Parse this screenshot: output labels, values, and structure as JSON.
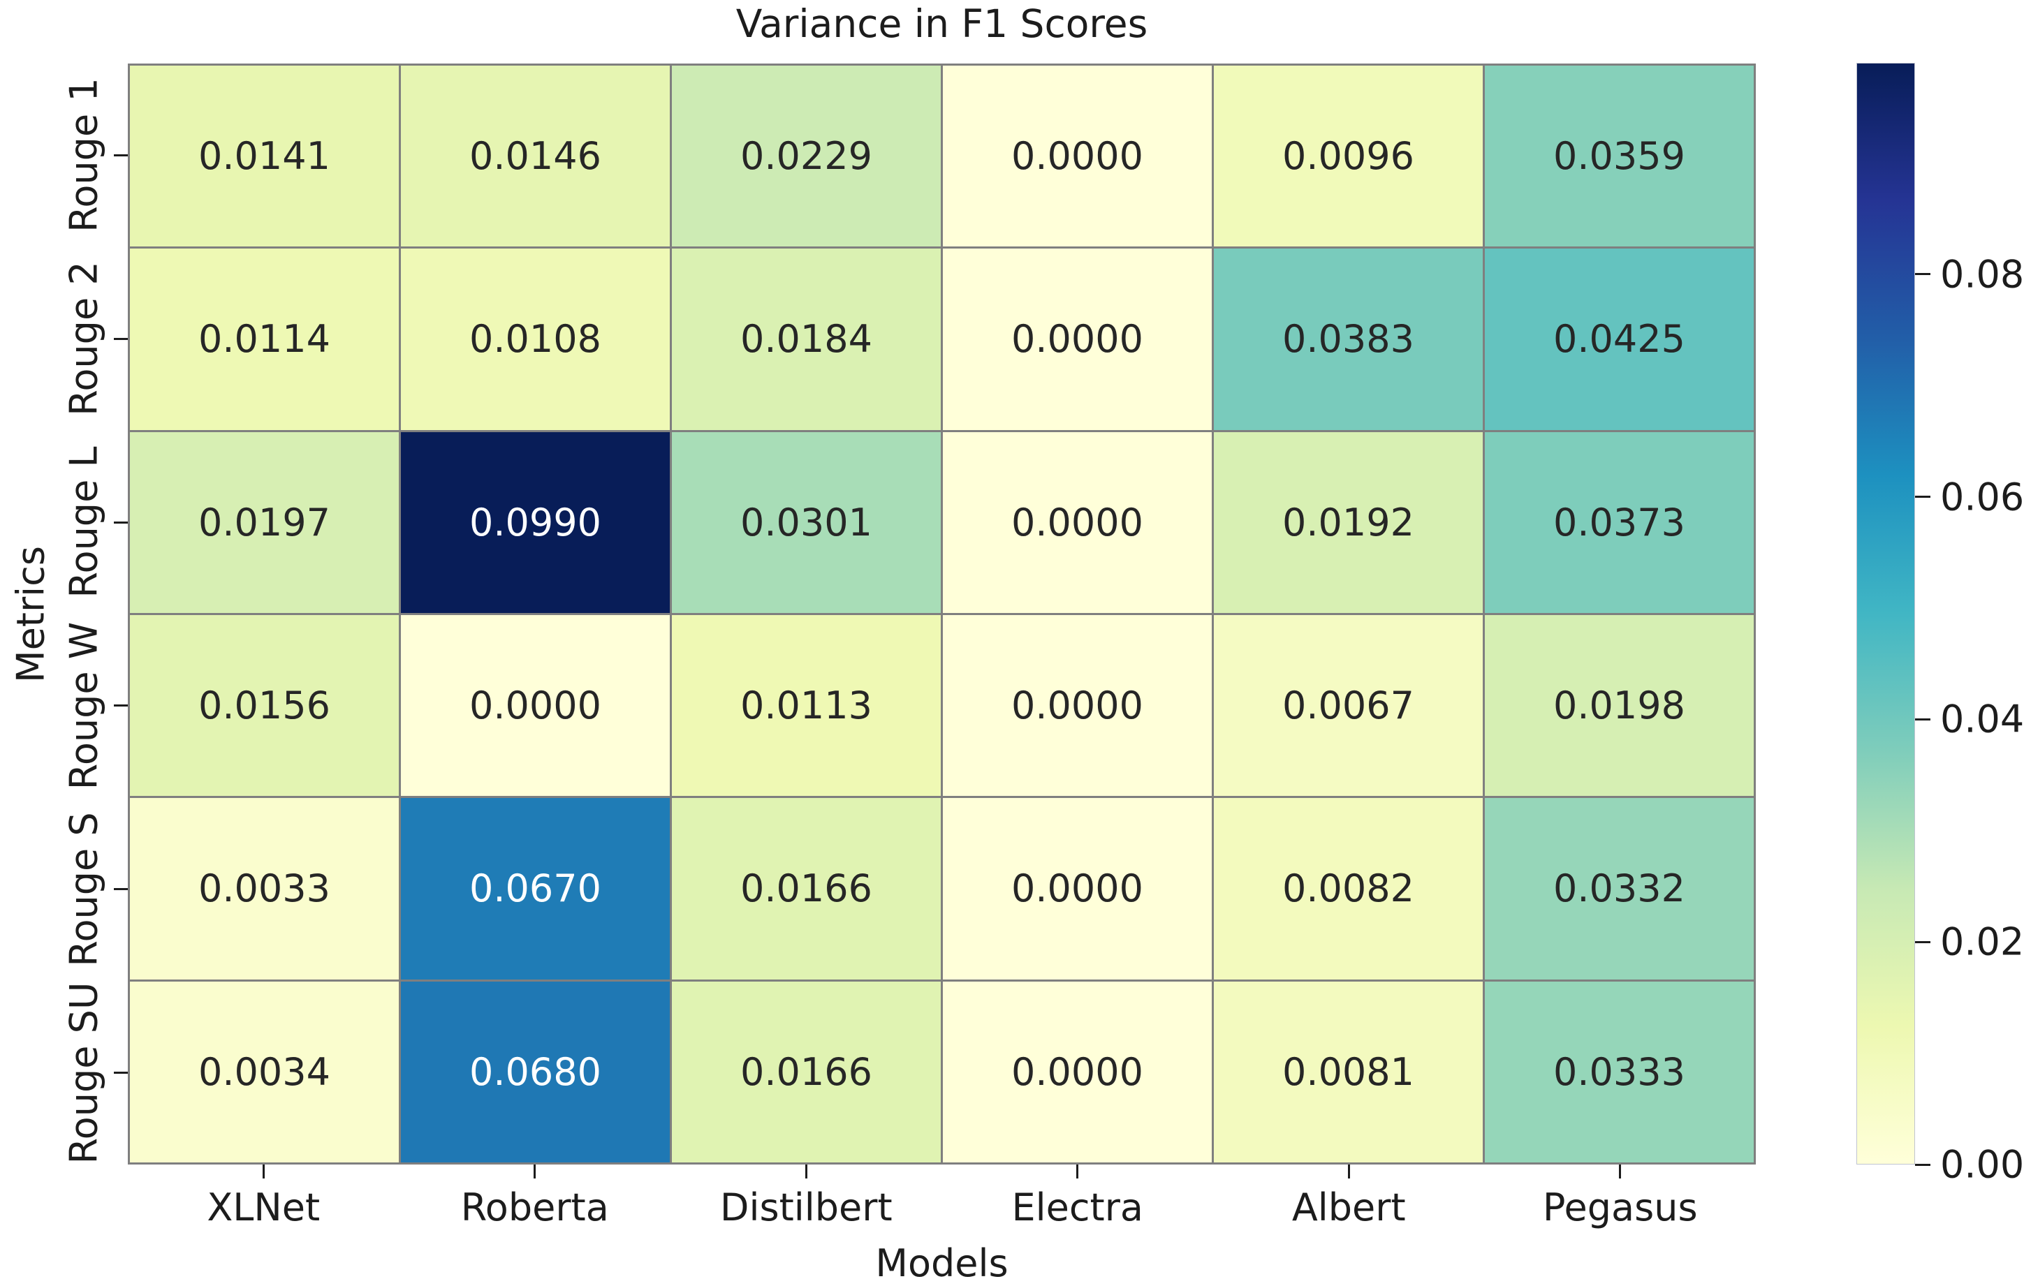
{
  "figure": {
    "background": "#ffffff",
    "text_color": "#1c1c1c",
    "gridline_color": "#7f7f7f",
    "annotation_dark_color": "#262626",
    "annotation_light_color": "#ffffff"
  },
  "chart_data": {
    "type": "heatmap",
    "title": "Variance in F1 Scores",
    "xlabel": "Models",
    "ylabel": "Metrics",
    "x_categories": [
      "XLNet",
      "Roberta",
      "Distilbert",
      "Electra",
      "Albert",
      "Pegasus"
    ],
    "y_categories": [
      "Rouge 1",
      "Rouge 2",
      "Rouge L",
      "Rouge W",
      "Rouge S",
      "Rouge SU"
    ],
    "values": [
      [
        0.0141,
        0.0146,
        0.0229,
        0.0,
        0.0096,
        0.0359
      ],
      [
        0.0114,
        0.0108,
        0.0184,
        0.0,
        0.0383,
        0.0425
      ],
      [
        0.0197,
        0.099,
        0.0301,
        0.0,
        0.0192,
        0.0373
      ],
      [
        0.0156,
        0.0,
        0.0113,
        0.0,
        0.0067,
        0.0198
      ],
      [
        0.0033,
        0.067,
        0.0166,
        0.0,
        0.0082,
        0.0332
      ],
      [
        0.0034,
        0.068,
        0.0166,
        0.0,
        0.0081,
        0.0333
      ]
    ],
    "annotations": [
      [
        "0.0141",
        "0.0146",
        "0.0229",
        "0.0000",
        "0.0096",
        "0.0359"
      ],
      [
        "0.0114",
        "0.0108",
        "0.0184",
        "0.0000",
        "0.0383",
        "0.0425"
      ],
      [
        "0.0197",
        "0.0990",
        "0.0301",
        "0.0000",
        "0.0192",
        "0.0373"
      ],
      [
        "0.0156",
        "0.0000",
        "0.0113",
        "0.0000",
        "0.0067",
        "0.0198"
      ],
      [
        "0.0033",
        "0.0670",
        "0.0166",
        "0.0000",
        "0.0082",
        "0.0332"
      ],
      [
        "0.0034",
        "0.0680",
        "0.0166",
        "0.0000",
        "0.0081",
        "0.0333"
      ]
    ],
    "vmin": 0.0,
    "vmax": 0.099,
    "colormap": "YlGnBu",
    "colormap_stops": [
      {
        "pos": 0.0,
        "color": "#ffffd9"
      },
      {
        "pos": 0.125,
        "color": "#edf8b1"
      },
      {
        "pos": 0.25,
        "color": "#c7e9b4"
      },
      {
        "pos": 0.375,
        "color": "#7fcdbb"
      },
      {
        "pos": 0.5,
        "color": "#41b6c4"
      },
      {
        "pos": 0.625,
        "color": "#1d91c0"
      },
      {
        "pos": 0.75,
        "color": "#225ea8"
      },
      {
        "pos": 0.875,
        "color": "#253494"
      },
      {
        "pos": 1.0,
        "color": "#081d58"
      }
    ],
    "colorbar": {
      "position": "right",
      "tick_values": [
        0.0,
        0.02,
        0.04,
        0.06,
        0.08
      ],
      "tick_labels": [
        "0.00",
        "0.02",
        "0.04",
        "0.06",
        "0.08"
      ]
    },
    "grid": false,
    "legend_position": "none"
  }
}
